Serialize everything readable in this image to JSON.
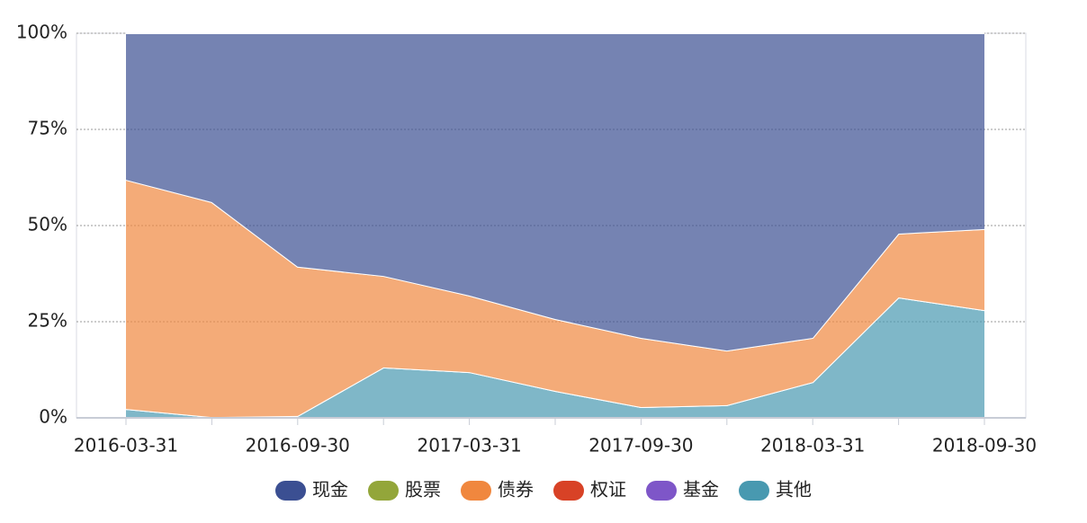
{
  "chart_data": {
    "type": "area",
    "stacked": true,
    "categories": [
      "2016-03-31",
      null,
      "2016-09-30",
      null,
      "2017-03-31",
      null,
      "2017-09-30",
      null,
      "2018-03-31",
      null,
      "2018-09-30"
    ],
    "series": [
      {
        "name": "现金",
        "color": "#3b4f92",
        "values": [
          38.1,
          43.9,
          60.7,
          63.1,
          68.2,
          74.3,
          79.2,
          82.5,
          79.2,
          52.1,
          50.9
        ]
      },
      {
        "name": "股票",
        "color": "#93a63a",
        "values": [
          0,
          0,
          0,
          0,
          0,
          0,
          0,
          0,
          0,
          0,
          0
        ]
      },
      {
        "name": "债券",
        "color": "#f0873e",
        "values": [
          59.6,
          55.9,
          38.8,
          23.8,
          19.9,
          18.7,
          18.0,
          14.2,
          11.5,
          16.6,
          21.1
        ]
      },
      {
        "name": "权证",
        "color": "#d84226",
        "values": [
          0,
          0,
          0,
          0,
          0,
          0,
          0,
          0,
          0,
          0,
          0
        ]
      },
      {
        "name": "基金",
        "color": "#7e56c8",
        "values": [
          0,
          0,
          0,
          0,
          0,
          0,
          0,
          0,
          0,
          0,
          0
        ]
      },
      {
        "name": "其他",
        "color": "#4899b0",
        "values": [
          2.3,
          0.2,
          0.5,
          13.1,
          11.9,
          7.0,
          2.8,
          3.3,
          9.3,
          31.3,
          28.0
        ]
      }
    ],
    "ylim": [
      0,
      100
    ],
    "yticks": [
      {
        "value": 0,
        "label": "0%"
      },
      {
        "value": 25,
        "label": "25%"
      },
      {
        "value": 50,
        "label": "50%"
      },
      {
        "value": 75,
        "label": "75%"
      },
      {
        "value": 100,
        "label": "100%"
      }
    ],
    "grid": true,
    "legend": "bottom"
  }
}
